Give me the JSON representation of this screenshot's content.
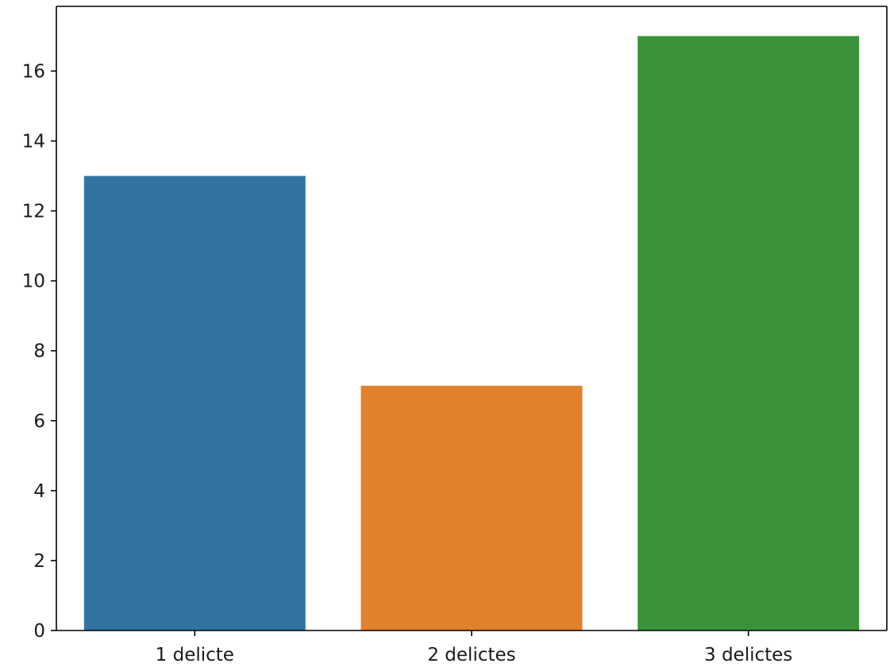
{
  "chart_data": {
    "type": "bar",
    "title": "",
    "xlabel": "",
    "ylabel": "",
    "categories": [
      "1 delicte",
      "2 delictes",
      "3 delictes"
    ],
    "values": [
      13,
      7,
      17
    ],
    "colors": [
      "#3274a1",
      "#e1812c",
      "#3a923a"
    ],
    "ylim": [
      0,
      17.85
    ],
    "yticks": [
      0,
      2,
      4,
      6,
      8,
      10,
      12,
      14,
      16
    ],
    "ytick_labels": [
      "0",
      "2",
      "4",
      "6",
      "8",
      "10",
      "12",
      "14",
      "16"
    ],
    "grid": false,
    "legend": "none"
  }
}
